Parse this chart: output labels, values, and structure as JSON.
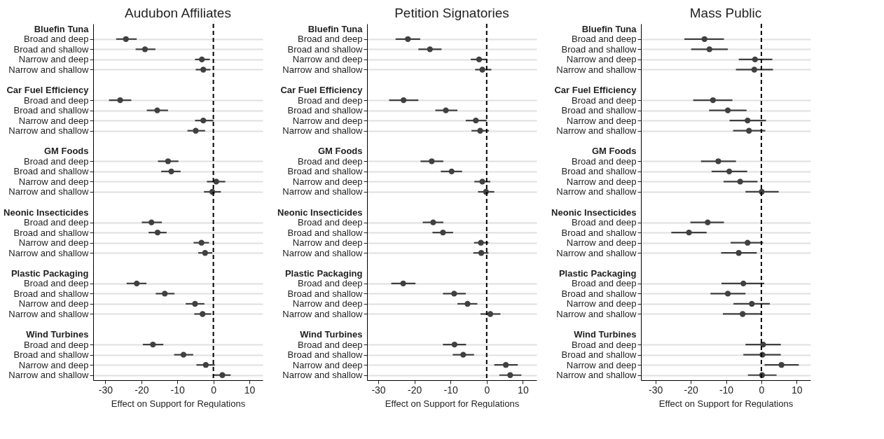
{
  "chart_data": [
    {
      "type": "scatter",
      "orientation": "horizontal",
      "title": "Audubon Affiliates",
      "xlabel": "Effect on Support for Regulations",
      "color": "#404040",
      "marker": "circle",
      "grid": "y",
      "xlim": [
        -33.4,
        13.7
      ],
      "xticks": [
        -30,
        -20,
        -10,
        0,
        10
      ],
      "ref_lines": [
        {
          "axis": "x",
          "value": 0,
          "color": "#000000",
          "line_style": "dashed"
        }
      ],
      "categories": [
        "Bluefin Tuna",
        "Broad and deep",
        "Broad and shallow",
        "Narrow and deep",
        "Narrow and shallow",
        null,
        "Car Fuel Efficiency",
        "Broad and deep",
        "Broad and shallow",
        "Narrow and deep",
        "Narrow and shallow",
        null,
        "GM Foods",
        "Broad and deep",
        "Broad and shallow",
        "Narrow and deep",
        "Narrow and shallow",
        null,
        "Neonic Insecticides",
        "Broad and deep",
        "Broad and shallow",
        "Narrow and deep",
        "Narrow and shallow",
        null,
        "Plastic Packaging",
        "Broad and deep",
        "Broad and shallow",
        "Narrow and deep",
        "Narrow and shallow",
        null,
        "Wind Turbines",
        "Broad and deep",
        "Broad and shallow",
        "Narrow and deep",
        "Narrow and shallow"
      ],
      "values": [
        null,
        -24.3,
        -19.0,
        -3.2,
        -2.8,
        null,
        null,
        -25.9,
        -15.6,
        -2.8,
        -4.9,
        null,
        null,
        -12.6,
        -11.7,
        0.8,
        -0.3,
        null,
        null,
        -17.2,
        -15.5,
        -3.3,
        -2.3,
        null,
        null,
        -21.3,
        -13.5,
        -5.1,
        -3.0,
        null,
        null,
        -16.8,
        -8.3,
        -2.1,
        2.5
      ],
      "errors": [
        null,
        [
          -27.0,
          -21.3
        ],
        [
          -21.6,
          -16.1
        ],
        [
          -5.1,
          -1.0
        ],
        [
          -4.9,
          -0.8
        ],
        null,
        null,
        [
          -29.0,
          -22.8
        ],
        [
          -18.5,
          -12.6
        ],
        [
          -5.1,
          0
        ],
        [
          -7.2,
          -2.3
        ],
        null,
        null,
        [
          -15.4,
          -9.7
        ],
        [
          -14.5,
          -9.1
        ],
        [
          -1.8,
          3.3
        ],
        [
          -2.6,
          2.1
        ],
        null,
        null,
        [
          -19.9,
          -14.3
        ],
        [
          -18.0,
          -13.0
        ],
        [
          -5.5,
          -1.2
        ],
        [
          -4.2,
          -0.3
        ],
        null,
        null,
        [
          -24.1,
          -18.6
        ],
        [
          -16.0,
          -10.8
        ],
        [
          -7.7,
          -2.5
        ],
        [
          -5.3,
          -0.6
        ],
        null,
        null,
        [
          -19.6,
          -13.9
        ],
        [
          -10.9,
          -5.6
        ],
        [
          -4.7,
          0.4
        ],
        [
          -0.1,
          4.8
        ]
      ]
    },
    {
      "type": "scatter",
      "orientation": "horizontal",
      "title": "Petition Signatories",
      "xlabel": "Effect on Support for Regulations",
      "color": "#404040",
      "marker": "circle",
      "grid": "y",
      "xlim": [
        -33.1,
        13.8
      ],
      "xticks": [
        -30,
        -20,
        -10,
        0,
        10
      ],
      "ref_lines": [
        {
          "axis": "x",
          "value": 0,
          "color": "#000000",
          "line_style": "dashed"
        }
      ],
      "categories": [
        "Bluefin Tuna",
        "Broad and deep",
        "Broad and shallow",
        "Narrow and deep",
        "Narrow and shallow",
        null,
        "Car Fuel Efficiency",
        "Broad and deep",
        "Broad and shallow",
        "Narrow and deep",
        "Narrow and shallow",
        null,
        "GM Foods",
        "Broad and deep",
        "Broad and shallow",
        "Narrow and deep",
        "Narrow and shallow",
        null,
        "Neonic Insecticides",
        "Broad and deep",
        "Broad and shallow",
        "Narrow and deep",
        "Narrow and shallow",
        null,
        "Plastic Packaging",
        "Broad and deep",
        "Broad and shallow",
        "Narrow and deep",
        "Narrow and shallow",
        null,
        "Wind Turbines",
        "Broad and deep",
        "Broad and shallow",
        "Narrow and deep",
        "Narrow and shallow"
      ],
      "values": [
        null,
        -21.8,
        -15.7,
        -2.1,
        -1.2,
        null,
        null,
        -23.0,
        -11.3,
        -3.0,
        -1.8,
        null,
        null,
        -15.2,
        -9.7,
        -1.2,
        -0.2,
        null,
        null,
        -14.8,
        -12.1,
        -1.6,
        -1.5,
        null,
        null,
        -23.1,
        -9.0,
        -5.3,
        1.0,
        null,
        null,
        -8.9,
        -6.5,
        5.3,
        6.5
      ],
      "errors": [
        null,
        [
          -25.2,
          -18.4
        ],
        [
          -18.9,
          -12.5
        ],
        [
          -4.4,
          0
        ],
        [
          -3.2,
          1.3
        ],
        null,
        null,
        [
          -27.0,
          -18.9
        ],
        [
          -14.2,
          -8.1
        ],
        [
          -5.8,
          0
        ],
        [
          -4.2,
          0.6
        ],
        null,
        null,
        [
          -18.3,
          -12.0
        ],
        [
          -12.7,
          -6.8
        ],
        [
          -3.4,
          1.0
        ],
        [
          -2.4,
          2.1
        ],
        null,
        null,
        [
          -17.7,
          -12.0
        ],
        [
          -15.0,
          -9.3
        ],
        [
          -3.5,
          0.5
        ],
        [
          -3.7,
          0.5
        ],
        null,
        null,
        [
          -26.4,
          -19.7
        ],
        [
          -12.1,
          -5.8
        ],
        [
          -8.1,
          -2.6
        ],
        [
          -1.7,
          3.8
        ],
        null,
        null,
        [
          -12.1,
          -5.7
        ],
        [
          -9.4,
          -3.5
        ],
        [
          2.1,
          8.6
        ],
        [
          3.5,
          9.6
        ]
      ]
    },
    {
      "type": "scatter",
      "orientation": "horizontal",
      "title": "Mass Public",
      "xlabel": "Effect on Support for Regulations",
      "color": "#404040",
      "marker": "circle",
      "grid": "y",
      "xlim": [
        -34.1,
        13.9
      ],
      "xticks": [
        -30,
        -20,
        -10,
        0,
        10
      ],
      "ref_lines": [
        {
          "axis": "x",
          "value": 0,
          "color": "#000000",
          "line_style": "dashed"
        }
      ],
      "categories": [
        "Bluefin Tuna",
        "Broad and deep",
        "Broad and shallow",
        "Narrow and deep",
        "Narrow and shallow",
        null,
        "Car Fuel Efficiency",
        "Broad and deep",
        "Broad and shallow",
        "Narrow and deep",
        "Narrow and shallow",
        null,
        "GM Foods",
        "Broad and deep",
        "Broad and shallow",
        "Narrow and deep",
        "Narrow and shallow",
        null,
        "Neonic Insecticides",
        "Broad and deep",
        "Broad and shallow",
        "Narrow and deep",
        "Narrow and shallow",
        null,
        "Plastic Packaging",
        "Broad and deep",
        "Broad and shallow",
        "Narrow and deep",
        "Narrow and shallow",
        null,
        "Wind Turbines",
        "Broad and deep",
        "Broad and shallow",
        "Narrow and deep",
        "Narrow and shallow"
      ],
      "values": [
        null,
        -16.1,
        -14.7,
        -1.8,
        -2.0,
        null,
        null,
        -13.7,
        -9.5,
        -3.9,
        -3.5,
        null,
        null,
        -12.2,
        -9.1,
        -6.0,
        0.1,
        null,
        null,
        -15.2,
        -20.5,
        -3.9,
        -6.4,
        null,
        null,
        -5.1,
        -9.5,
        -2.7,
        -5.3,
        null,
        null,
        0.5,
        0.3,
        5.7,
        0.2
      ],
      "errors": [
        null,
        [
          -21.8,
          -10.6
        ],
        [
          -19.9,
          -9.5
        ],
        [
          -6.4,
          3.1
        ],
        [
          -7.2,
          3.3
        ],
        null,
        null,
        [
          -19.3,
          -8.2
        ],
        [
          -14.8,
          -4.2
        ],
        [
          -9.0,
          1.3
        ],
        [
          -8.0,
          1.1
        ],
        null,
        null,
        [
          -17.1,
          -7.2
        ],
        [
          -14.1,
          -4.0
        ],
        [
          -10.7,
          -1.1
        ],
        [
          -4.5,
          4.9
        ],
        null,
        null,
        [
          -20.1,
          -10.6
        ],
        [
          -25.5,
          -15.5
        ],
        [
          -8.7,
          0.5
        ],
        [
          -11.4,
          -1.3
        ],
        null,
        null,
        [
          -11.3,
          0.8
        ],
        [
          -14.4,
          -4.5
        ],
        [
          -7.9,
          2.4
        ],
        [
          -10.9,
          0
        ],
        null,
        null,
        [
          -4.5,
          5.5
        ],
        [
          -5.1,
          5.5
        ],
        [
          0.9,
          10.6
        ],
        [
          -3.8,
          4.3
        ]
      ]
    }
  ]
}
